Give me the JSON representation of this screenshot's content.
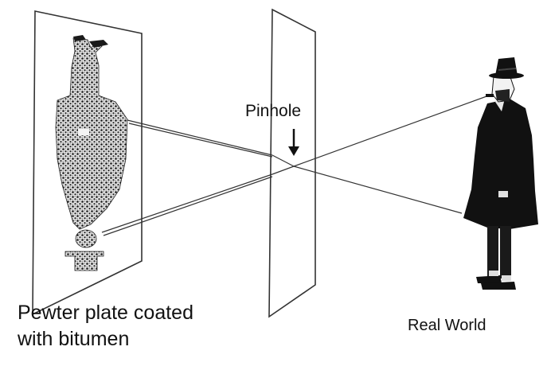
{
  "labels": {
    "pinhole": "Pinhole",
    "plate_line1": "Pewter plate coated",
    "plate_line2": "with bitumen",
    "real_world": "Real World"
  },
  "figures": {
    "subject": "man in top hat and long coat (upright)",
    "projected_image": "inverted man, grainy bitumen texture"
  },
  "icons": [
    "down-arrow-icon",
    "top-hat-icon"
  ],
  "colors": {
    "ink": "#111111",
    "background": "#ffffff",
    "plate_stroke": "#333333"
  }
}
